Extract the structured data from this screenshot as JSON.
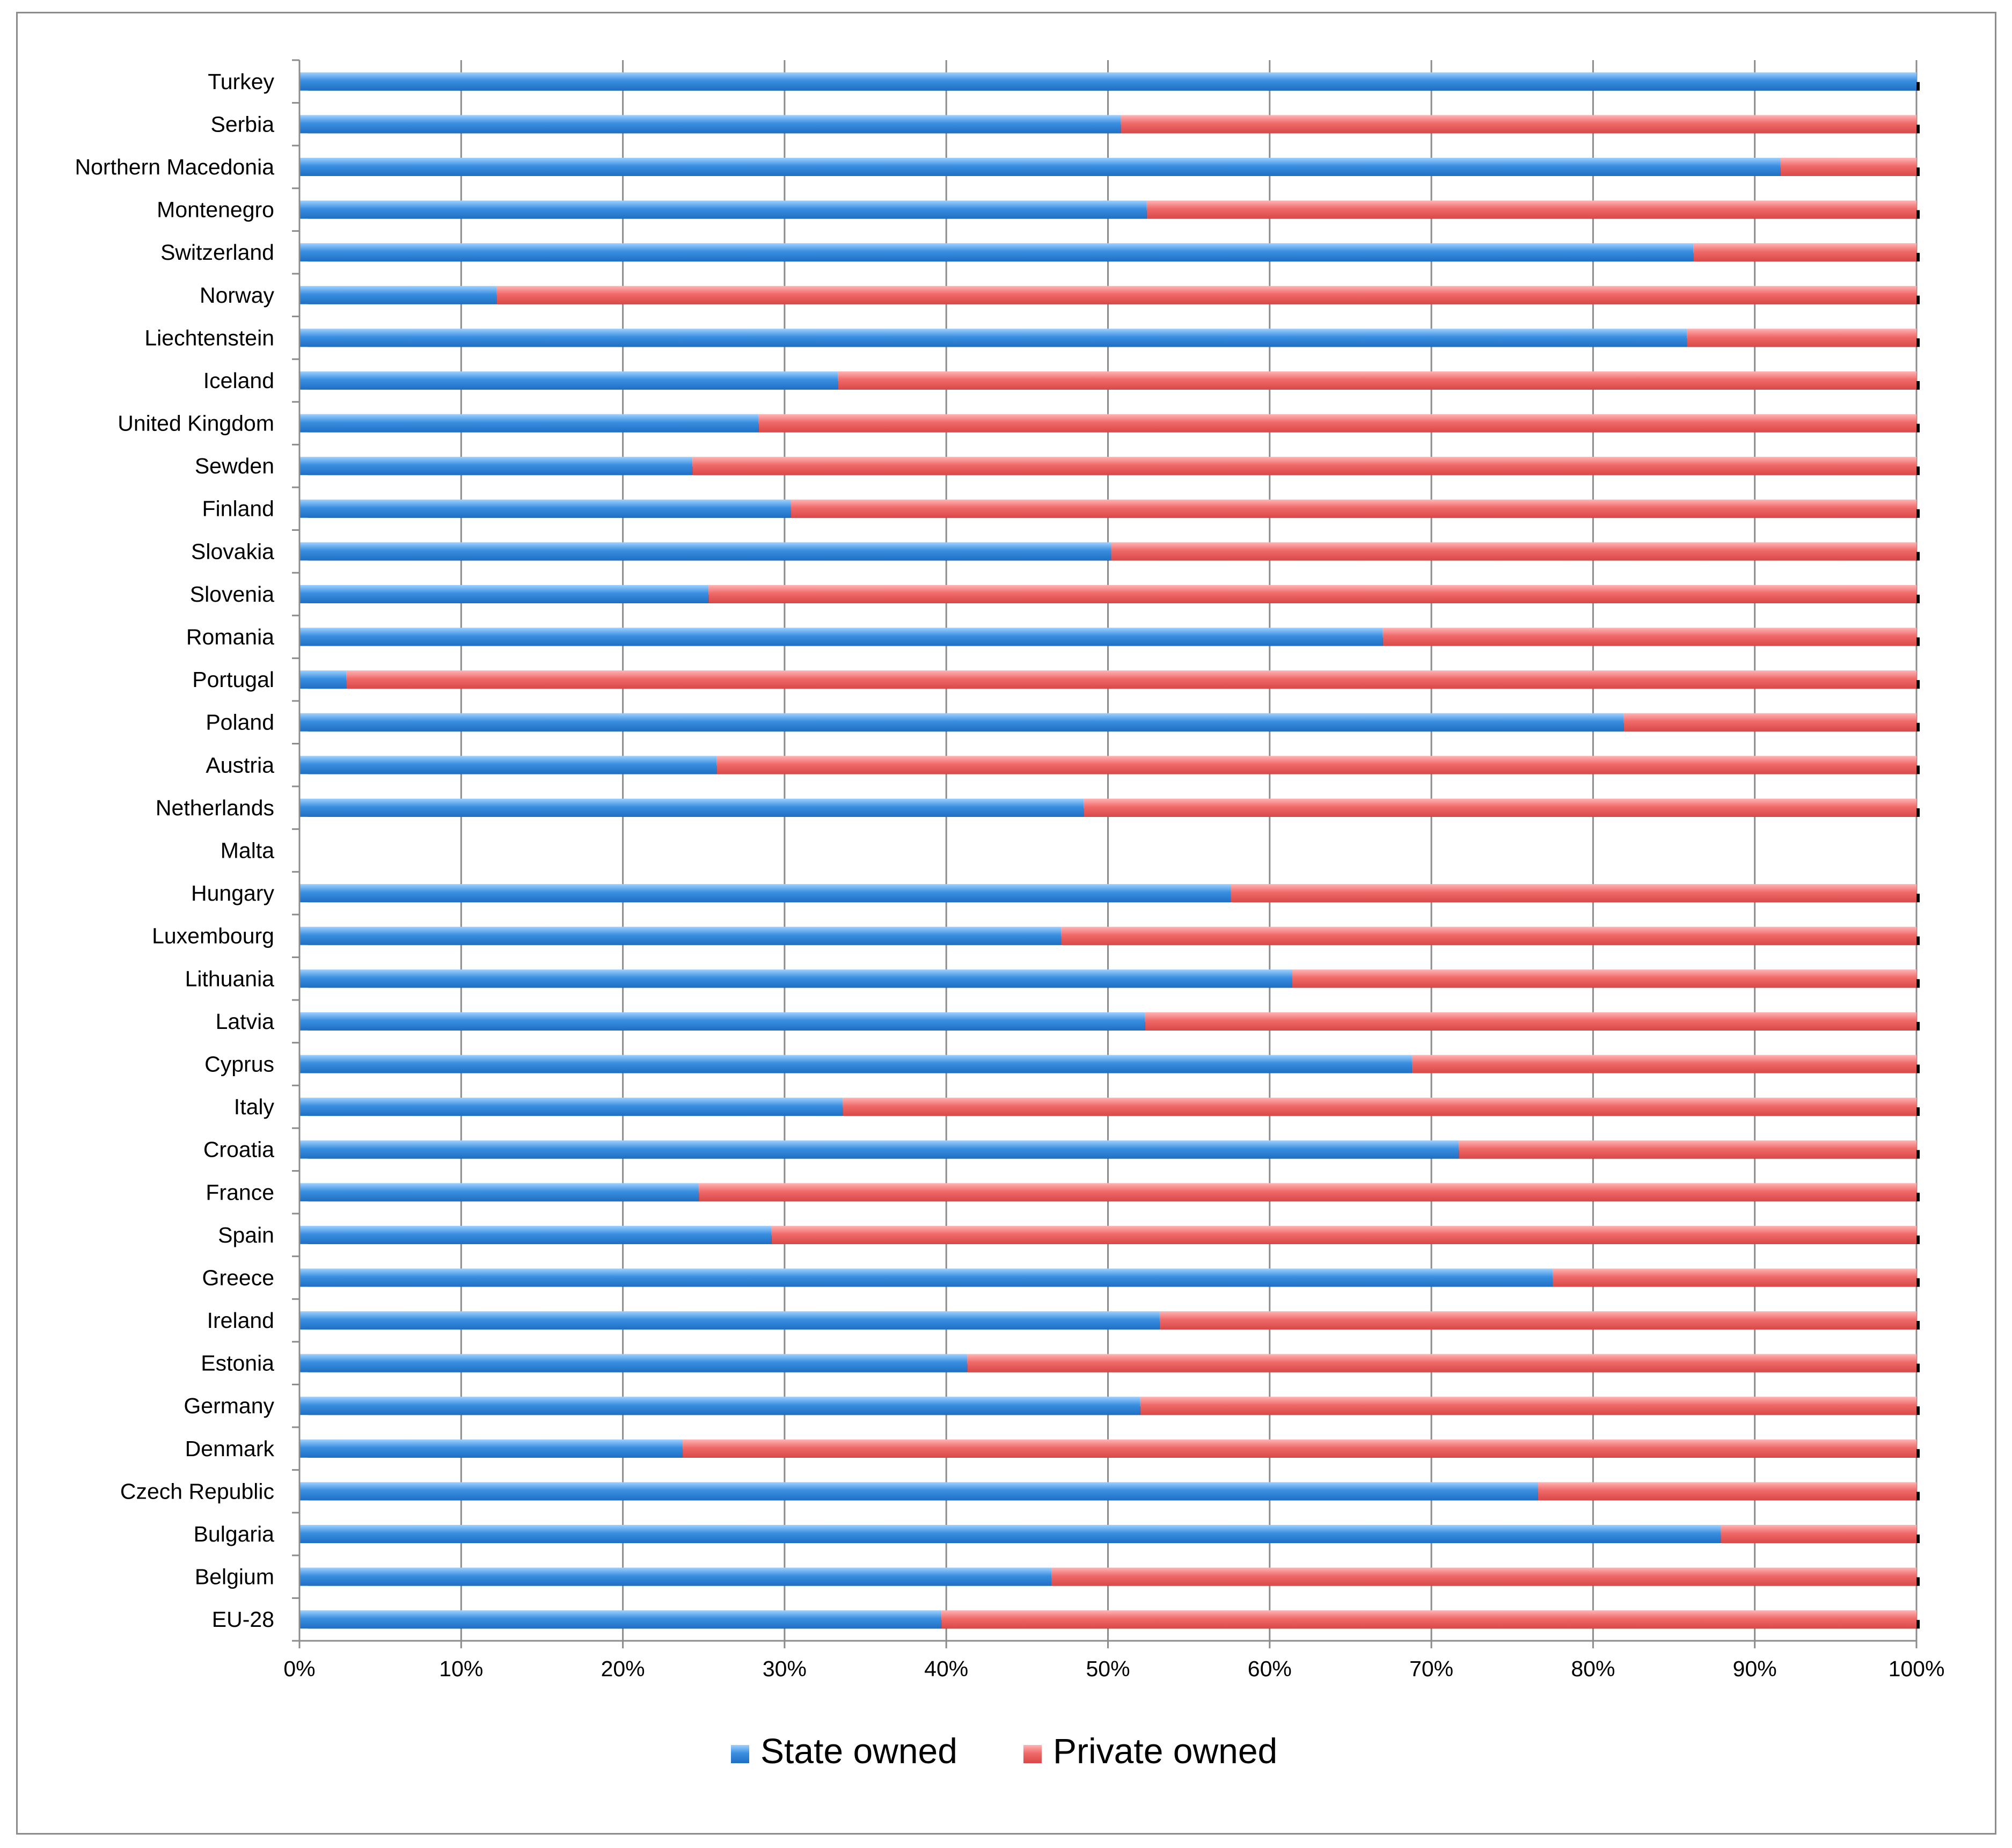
{
  "chart_data": {
    "type": "bar",
    "orientation": "horizontal",
    "stacked": "percent",
    "title": "",
    "xlabel": "",
    "ylabel": "",
    "xlim": [
      0,
      100
    ],
    "tick_step": 10,
    "tick_suffix": "%",
    "grid": true,
    "legend_position": "bottom",
    "categories": [
      "Turkey",
      "Serbia",
      "Northern Macedonia",
      "Montenegro",
      "Switzerland",
      "Norway",
      "Liechtenstein",
      "Iceland",
      "United Kingdom",
      "Sewden",
      "Finland",
      "Slovakia",
      "Slovenia",
      "Romania",
      "Portugal",
      "Poland",
      "Austria",
      "Netherlands",
      "Malta",
      "Hungary",
      "Luxembourg",
      "Lithuania",
      "Latvia",
      "Cyprus",
      "Italy",
      "Croatia",
      "France",
      "Spain",
      "Greece",
      "Ireland",
      "Estonia",
      "Germany",
      "Denmark",
      "Czech Republic",
      "Bulgaria",
      "Belgium",
      "EU-28"
    ],
    "series": [
      {
        "name": "State owned",
        "color": "#3a8fe0",
        "values": [
          100,
          50.8,
          91.6,
          52.4,
          86.2,
          12.2,
          85.8,
          33.3,
          28.4,
          24.3,
          30.4,
          50.2,
          25.3,
          67,
          2.9,
          81.9,
          25.8,
          48.5,
          0,
          57.6,
          47.1,
          61.4,
          52.3,
          68.8,
          33.6,
          71.7,
          24.7,
          29.2,
          77.5,
          53.2,
          41.3,
          52,
          23.7,
          76.6,
          87.9,
          46.5,
          39.7
        ]
      },
      {
        "name": "Private owned",
        "color": "#f06a6a",
        "values": [
          0,
          49.2,
          8.4,
          47.6,
          13.8,
          87.8,
          14.2,
          66.7,
          71.6,
          75.7,
          69.6,
          49.8,
          74.7,
          33,
          97.1,
          18.1,
          74.2,
          51.5,
          0,
          42.4,
          52.9,
          38.6,
          47.7,
          31.2,
          66.4,
          28.3,
          75.3,
          70.8,
          22.5,
          46.8,
          58.7,
          48,
          76.3,
          23.4,
          12.1,
          53.5,
          60.3
        ]
      }
    ]
  }
}
